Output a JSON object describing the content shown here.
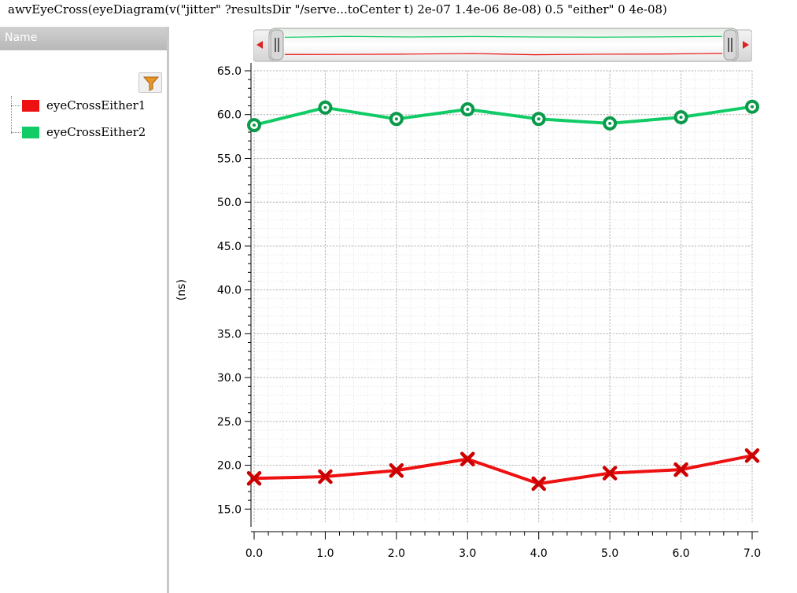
{
  "window": {
    "title": "awvEyeCross(eyeDiagram(v(\"jitter\" ?resultsDir \"/serve...toCenter t) 2e-07 1.4e-06 8e-08) 0.5 \"either\" 0 4e-08)"
  },
  "left_panel": {
    "header": "Name",
    "filter_icon": "funnel-icon"
  },
  "colors": {
    "series1": "#ee1111",
    "series2": "#11cc66",
    "grid": "#c8c8c8"
  },
  "chart_data": {
    "type": "line",
    "ylabel": "(ns)",
    "xlabel": "",
    "xlim": [
      0,
      7
    ],
    "ylim": [
      13.5,
      65
    ],
    "x_ticks": [
      "0.0",
      "1.0",
      "2.0",
      "3.0",
      "4.0",
      "5.0",
      "6.0",
      "7.0"
    ],
    "y_ticks": [
      "15.0",
      "20.0",
      "25.0",
      "30.0",
      "35.0",
      "40.0",
      "45.0",
      "50.0",
      "55.0",
      "60.0",
      "65.0"
    ],
    "grid": true,
    "legend_position": "left-panel",
    "series": [
      {
        "name": "eyeCrossEither1",
        "marker": "x",
        "color": "#ee1111",
        "x": [
          0,
          1,
          2,
          3,
          4,
          5,
          6,
          7
        ],
        "values": [
          18.5,
          18.7,
          19.4,
          20.7,
          17.9,
          19.1,
          19.5,
          21.1
        ]
      },
      {
        "name": "eyeCrossEither2",
        "marker": "circle",
        "color": "#11cc66",
        "x": [
          0,
          1,
          2,
          3,
          4,
          5,
          6,
          7
        ],
        "values": [
          58.8,
          60.8,
          59.5,
          60.6,
          59.5,
          59.0,
          59.7,
          60.9
        ]
      }
    ]
  }
}
